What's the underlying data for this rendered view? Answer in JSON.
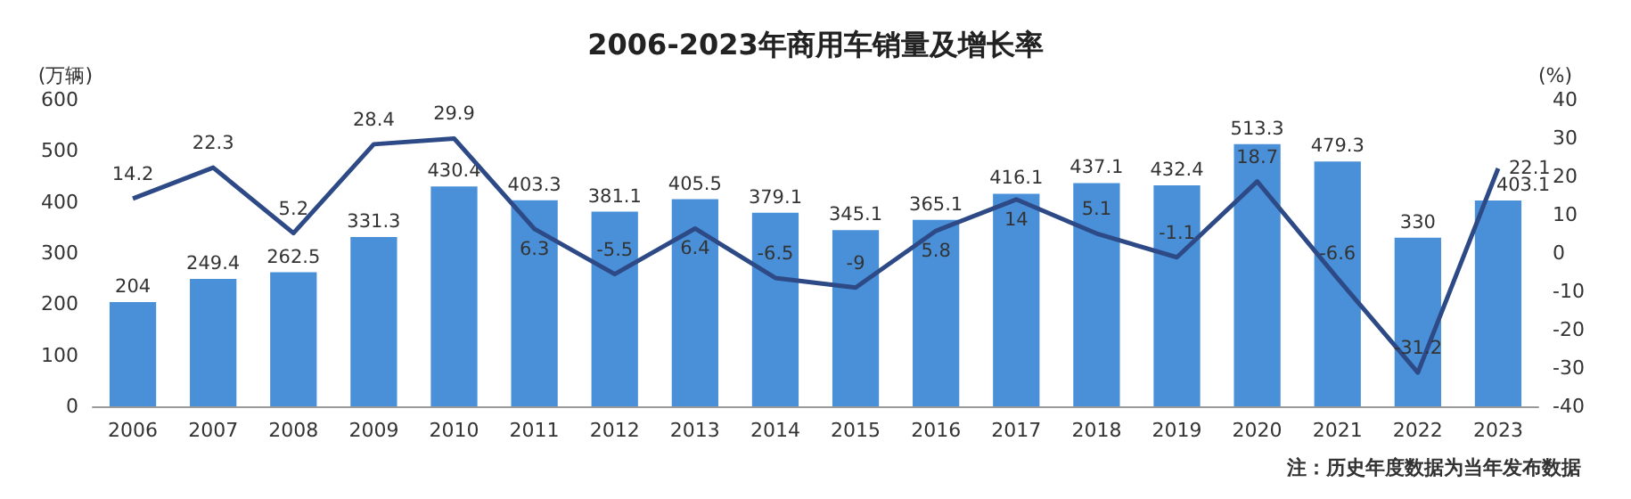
{
  "chart_data": {
    "type": "bar",
    "title": "2006-2023年商用车销量及增长率",
    "ylabel": "(万辆)",
    "y2label": "(%)",
    "categories": [
      "2006",
      "2007",
      "2008",
      "2009",
      "2010",
      "2011",
      "2012",
      "2013",
      "2014",
      "2015",
      "2016",
      "2017",
      "2018",
      "2019",
      "2020",
      "2021",
      "2022",
      "2023"
    ],
    "series": [
      {
        "type": "bar",
        "color": "#4a90d9",
        "values": [
          204,
          249.4,
          262.5,
          331.3,
          430.4,
          403.3,
          381.1,
          405.5,
          379.1,
          345.1,
          365.1,
          416.1,
          437.1,
          432.4,
          513.3,
          479.3,
          330,
          403.1
        ]
      },
      {
        "type": "line",
        "axis": "y2",
        "color": "#2e4a86",
        "values": [
          14.2,
          22.3,
          5.2,
          28.4,
          29.9,
          6.3,
          -5.5,
          6.4,
          -6.5,
          -9,
          5.8,
          14,
          5.1,
          -1.1,
          18.7,
          -6.6,
          -31.2,
          22.1
        ]
      }
    ],
    "ylim": [
      0,
      600
    ],
    "yticks": [
      0,
      100,
      200,
      300,
      400,
      500,
      600
    ],
    "y2lim": [
      -40,
      40
    ],
    "y2ticks": [
      -40,
      -30,
      -20,
      -10,
      0,
      10,
      20,
      30,
      40
    ],
    "data_labels": true,
    "grid": false,
    "marker": "none",
    "line_style": "solid",
    "annotations": [
      "注：历史年度数据为当年发布数据"
    ]
  }
}
